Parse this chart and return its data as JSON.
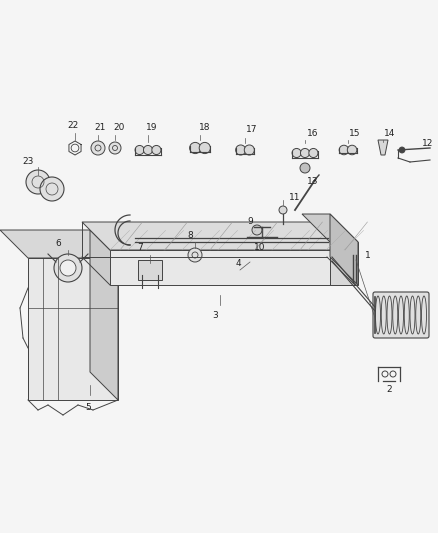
{
  "background_color": "#f5f5f5",
  "figure_width": 4.38,
  "figure_height": 5.33,
  "dpi": 100,
  "line_color": "#444444",
  "gray_fill": "#d0d0d0",
  "light_gray": "#e8e8e8"
}
